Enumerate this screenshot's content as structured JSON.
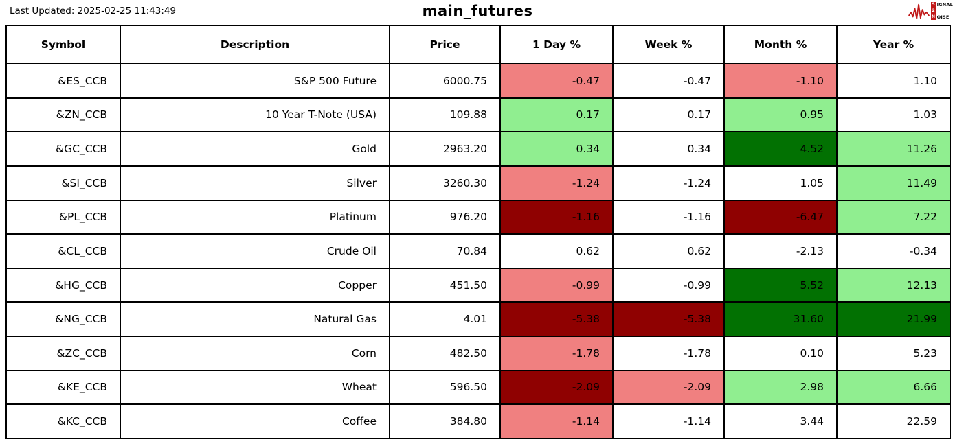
{
  "header": {
    "last_updated": "Last Updated: 2025-02-25 11:43:49",
    "logo": {
      "badge1": "S",
      "rest1": "IGNAL",
      "badge2": "2",
      "badge3": "N",
      "rest3": "OISE",
      "accent": "#c01818"
    }
  },
  "colors": {
    "border": "#000000",
    "tones": {
      "neutral": "#ffffff",
      "pos_mild": "#90ee90",
      "pos_strong": "#027102",
      "neg_mild": "#f08080",
      "neg_strong": "#8f0101"
    }
  },
  "chart_data": {
    "type": "table",
    "title": "main_futures",
    "columns": [
      "Symbol",
      "Description",
      "Price",
      "1 Day %",
      "Week %",
      "Month %",
      "Year %"
    ],
    "rows": [
      {
        "symbol": "&ES_CCB",
        "description": "S&P 500 Future",
        "price": "6000.75",
        "pct": [
          {
            "column": "1 Day %",
            "value": -0.47,
            "tone": "neg_mild"
          },
          {
            "column": "Week %",
            "value": -0.47,
            "tone": "neutral"
          },
          {
            "column": "Month %",
            "value": -1.1,
            "tone": "neg_mild"
          },
          {
            "column": "Year %",
            "value": 1.1,
            "tone": "neutral"
          }
        ]
      },
      {
        "symbol": "&ZN_CCB",
        "description": "10 Year T-Note (USA)",
        "price": "109.88",
        "pct": [
          {
            "column": "1 Day %",
            "value": 0.17,
            "tone": "pos_mild"
          },
          {
            "column": "Week %",
            "value": 0.17,
            "tone": "neutral"
          },
          {
            "column": "Month %",
            "value": 0.95,
            "tone": "pos_mild"
          },
          {
            "column": "Year %",
            "value": 1.03,
            "tone": "neutral"
          }
        ]
      },
      {
        "symbol": "&GC_CCB",
        "description": "Gold",
        "price": "2963.20",
        "pct": [
          {
            "column": "1 Day %",
            "value": 0.34,
            "tone": "pos_mild"
          },
          {
            "column": "Week %",
            "value": 0.34,
            "tone": "neutral"
          },
          {
            "column": "Month %",
            "value": 4.52,
            "tone": "pos_strong"
          },
          {
            "column": "Year %",
            "value": 11.26,
            "tone": "pos_mild"
          }
        ]
      },
      {
        "symbol": "&SI_CCB",
        "description": "Silver",
        "price": "3260.30",
        "pct": [
          {
            "column": "1 Day %",
            "value": -1.24,
            "tone": "neg_mild"
          },
          {
            "column": "Week %",
            "value": -1.24,
            "tone": "neutral"
          },
          {
            "column": "Month %",
            "value": 1.05,
            "tone": "neutral"
          },
          {
            "column": "Year %",
            "value": 11.49,
            "tone": "pos_mild"
          }
        ]
      },
      {
        "symbol": "&PL_CCB",
        "description": "Platinum",
        "price": "976.20",
        "pct": [
          {
            "column": "1 Day %",
            "value": -1.16,
            "tone": "neg_strong"
          },
          {
            "column": "Week %",
            "value": -1.16,
            "tone": "neutral"
          },
          {
            "column": "Month %",
            "value": -6.47,
            "tone": "neg_strong"
          },
          {
            "column": "Year %",
            "value": 7.22,
            "tone": "pos_mild"
          }
        ]
      },
      {
        "symbol": "&CL_CCB",
        "description": "Crude Oil",
        "price": "70.84",
        "pct": [
          {
            "column": "1 Day %",
            "value": 0.62,
            "tone": "neutral"
          },
          {
            "column": "Week %",
            "value": 0.62,
            "tone": "neutral"
          },
          {
            "column": "Month %",
            "value": -2.13,
            "tone": "neutral"
          },
          {
            "column": "Year %",
            "value": -0.34,
            "tone": "neutral"
          }
        ]
      },
      {
        "symbol": "&HG_CCB",
        "description": "Copper",
        "price": "451.50",
        "pct": [
          {
            "column": "1 Day %",
            "value": -0.99,
            "tone": "neg_mild"
          },
          {
            "column": "Week %",
            "value": -0.99,
            "tone": "neutral"
          },
          {
            "column": "Month %",
            "value": 5.52,
            "tone": "pos_strong"
          },
          {
            "column": "Year %",
            "value": 12.13,
            "tone": "pos_mild"
          }
        ]
      },
      {
        "symbol": "&NG_CCB",
        "description": "Natural Gas",
        "price": "4.01",
        "pct": [
          {
            "column": "1 Day %",
            "value": -5.38,
            "tone": "neg_strong"
          },
          {
            "column": "Week %",
            "value": -5.38,
            "tone": "neg_strong"
          },
          {
            "column": "Month %",
            "value": 31.6,
            "tone": "pos_strong"
          },
          {
            "column": "Year %",
            "value": 21.99,
            "tone": "pos_strong"
          }
        ]
      },
      {
        "symbol": "&ZC_CCB",
        "description": "Corn",
        "price": "482.50",
        "pct": [
          {
            "column": "1 Day %",
            "value": -1.78,
            "tone": "neg_mild"
          },
          {
            "column": "Week %",
            "value": -1.78,
            "tone": "neutral"
          },
          {
            "column": "Month %",
            "value": 0.1,
            "tone": "neutral"
          },
          {
            "column": "Year %",
            "value": 5.23,
            "tone": "neutral"
          }
        ]
      },
      {
        "symbol": "&KE_CCB",
        "description": "Wheat",
        "price": "596.50",
        "pct": [
          {
            "column": "1 Day %",
            "value": -2.09,
            "tone": "neg_strong"
          },
          {
            "column": "Week %",
            "value": -2.09,
            "tone": "neg_mild"
          },
          {
            "column": "Month %",
            "value": 2.98,
            "tone": "pos_mild"
          },
          {
            "column": "Year %",
            "value": 6.66,
            "tone": "pos_mild"
          }
        ]
      },
      {
        "symbol": "&KC_CCB",
        "description": "Coffee",
        "price": "384.80",
        "pct": [
          {
            "column": "1 Day %",
            "value": -1.14,
            "tone": "neg_mild"
          },
          {
            "column": "Week %",
            "value": -1.14,
            "tone": "neutral"
          },
          {
            "column": "Month %",
            "value": 3.44,
            "tone": "neutral"
          },
          {
            "column": "Year %",
            "value": 22.59,
            "tone": "neutral"
          }
        ]
      }
    ]
  }
}
